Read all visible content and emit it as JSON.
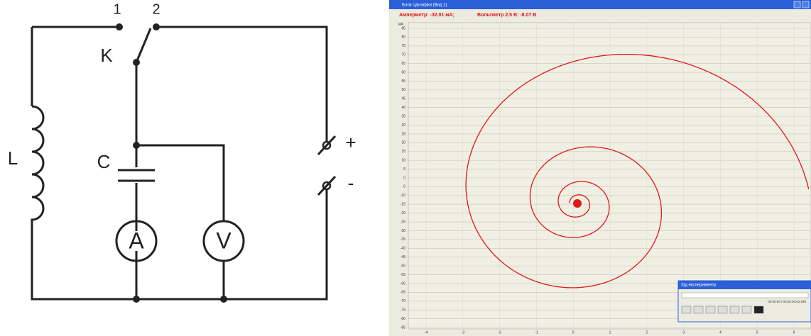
{
  "circuit": {
    "terminal_1": "1",
    "terminal_2": "2",
    "switch_label": "K",
    "inductor_label": "L",
    "capacitor_label": "C",
    "ammeter_label": "A",
    "voltmeter_label": "V",
    "plus_label": "+",
    "minus_label": "-"
  },
  "screenshot": {
    "window_title": "Блок сургафіки (Вид 1)",
    "status_ammeter": "Амперметр: -32.01 мА;",
    "status_voltmeter": "Вольтметр 2.5 В: -8.07 В",
    "y_axis_label": "мА",
    "yticks": [
      85,
      80,
      75,
      70,
      65,
      60,
      55,
      50,
      45,
      40,
      35,
      30,
      25,
      20,
      15,
      10,
      5,
      0,
      -5,
      -10,
      -15,
      -20,
      -25,
      -30,
      -35,
      -40,
      -45,
      -50,
      -55,
      -60,
      -65,
      -70,
      -75,
      -80,
      -85
    ],
    "xticks": [
      -4,
      -3,
      -2,
      -1,
      0,
      1,
      2,
      3,
      4,
      5,
      6
    ],
    "dialog_title": "Хід експерименту",
    "dialog_time": "00:00:00 / 00:00:00:02.930"
  }
}
